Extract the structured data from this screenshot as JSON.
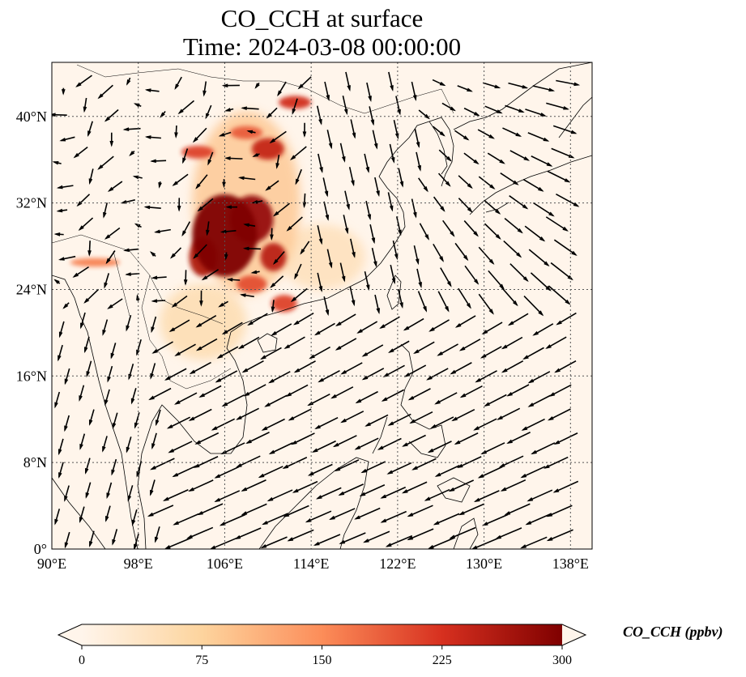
{
  "title": {
    "line1": "CO_CCH at surface",
    "line2": "Time: 2024-03-08 00:00:00"
  },
  "map": {
    "lon_range": [
      90,
      140
    ],
    "lat_range": [
      0,
      45
    ],
    "lon_ticks": [
      {
        "value": 90,
        "label": "90°E"
      },
      {
        "value": 98,
        "label": "98°E"
      },
      {
        "value": 106,
        "label": "106°E"
      },
      {
        "value": 114,
        "label": "114°E"
      },
      {
        "value": 122,
        "label": "122°E"
      },
      {
        "value": 130,
        "label": "130°E"
      },
      {
        "value": 138,
        "label": "138°E"
      }
    ],
    "lat_ticks": [
      {
        "value": 0,
        "label": "0°"
      },
      {
        "value": 8,
        "label": "8°N"
      },
      {
        "value": 16,
        "label": "16°N"
      },
      {
        "value": 24,
        "label": "24°N"
      },
      {
        "value": 32,
        "label": "32°N"
      },
      {
        "value": 40,
        "label": "40°N"
      }
    ],
    "gridlines": true,
    "background_color": "#fff5eb",
    "coastline_color": "#000000",
    "wind_vectors": true
  },
  "colorbar": {
    "label": "CO_CCH (ppbv)",
    "colormap": "OrRd",
    "min": 0,
    "max": 300,
    "extend": "both",
    "ticks": [
      {
        "value": 0,
        "label": "0"
      },
      {
        "value": 75,
        "label": "75"
      },
      {
        "value": 150,
        "label": "150"
      },
      {
        "value": 225,
        "label": "225"
      },
      {
        "value": 300,
        "label": "300"
      }
    ],
    "colors": [
      "#fff5eb",
      "#fdd49e",
      "#fc8d59",
      "#d7301f",
      "#7f0000"
    ]
  },
  "concentration_patches": [
    {
      "lon": 106,
      "lat": 29,
      "rx": 3.0,
      "ry": 3.8,
      "value": 300
    },
    {
      "lon": 108.5,
      "lat": 30.5,
      "rx": 2.0,
      "ry": 2.2,
      "value": 280
    },
    {
      "lon": 110.5,
      "lat": 27,
      "rx": 1.2,
      "ry": 1.3,
      "value": 250
    },
    {
      "lon": 104,
      "lat": 27,
      "rx": 1.3,
      "ry": 1.8,
      "value": 260
    },
    {
      "lon": 110,
      "lat": 37,
      "rx": 1.5,
      "ry": 1.0,
      "value": 240
    },
    {
      "lon": 112.5,
      "lat": 41.3,
      "rx": 1.5,
      "ry": 0.6,
      "value": 230
    },
    {
      "lon": 103.5,
      "lat": 36.7,
      "rx": 1.5,
      "ry": 0.6,
      "value": 210
    },
    {
      "lon": 108,
      "lat": 38.5,
      "rx": 1.5,
      "ry": 0.6,
      "value": 190
    },
    {
      "lon": 111.5,
      "lat": 22.7,
      "rx": 1.2,
      "ry": 0.8,
      "value": 210
    },
    {
      "lon": 108.5,
      "lat": 24.5,
      "rx": 1.4,
      "ry": 0.8,
      "value": 200
    },
    {
      "lon": 94,
      "lat": 26.5,
      "rx": 2.3,
      "ry": 0.4,
      "value": 160
    },
    {
      "lon": 108,
      "lat": 32,
      "rx": 5.0,
      "ry": 8.5,
      "value": 90
    },
    {
      "lon": 104,
      "lat": 21,
      "rx": 4.0,
      "ry": 3.5,
      "value": 60
    },
    {
      "lon": 115,
      "lat": 27,
      "rx": 4.0,
      "ry": 3.0,
      "value": 50
    }
  ]
}
